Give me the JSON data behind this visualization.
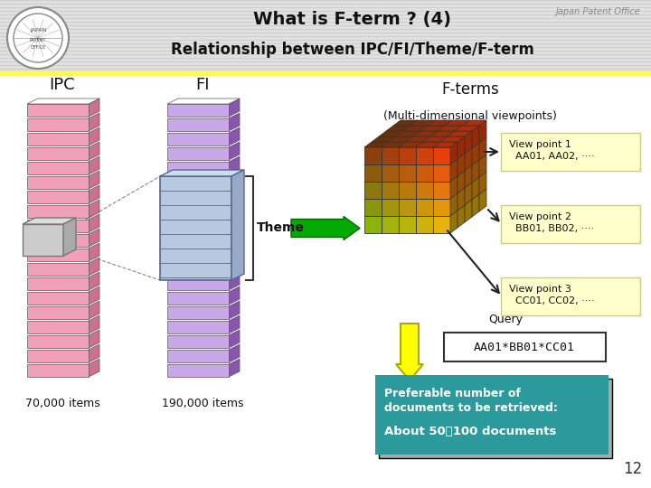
{
  "title_line1": "What is F-term ? (4)",
  "title_line2": "Relationship between IPC/FI/Theme/F-term",
  "jpo_text": "Japan Patent Office",
  "ipc_label": "IPC",
  "fi_label": "FI",
  "fterms_label": "F-terms",
  "fterms_sub": "(Multi-dimensional viewpoints)",
  "theme_label": "Theme",
  "ipc_items": "70,000 items",
  "fi_items": "190,000 items",
  "vp1_title": "View point 1",
  "vp1_items": "  AA01, AA02, ····",
  "vp2_title": "View point 2",
  "vp2_items": "  BB01, BB02, ····",
  "vp3_title": "View point 3",
  "vp3_items": "  CC01, CC02, ····",
  "query_label": "Query",
  "query_text": "AA01*BB01*CC01",
  "box_line1": "Preferable number of",
  "box_line2": "documents to be retrieved:",
  "box_line3": "About 50～100 documents",
  "teal_color": "#2b9a9c",
  "ipc_color": "#f0a0b8",
  "ipc_edge": "#c06080",
  "fi_color": "#c8a8e8",
  "fi_edge": "#9966bb",
  "theme_box_color": "#aab8d8",
  "page_num": "12"
}
